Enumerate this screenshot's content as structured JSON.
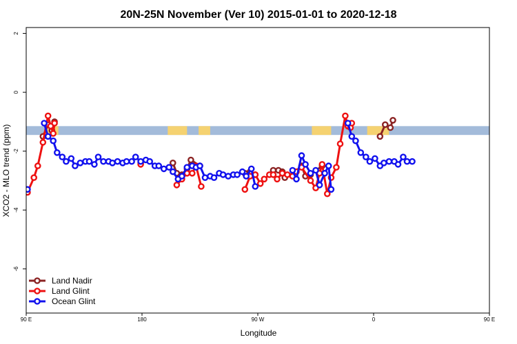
{
  "chart_data": {
    "type": "line",
    "title": "20N-25N November (Ver 10)   2015-01-01 to 2020-12-18",
    "xlabel": "Longitude",
    "ylabel": "XCO2 - MLO trend (ppm)",
    "xlim": [
      90,
      450
    ],
    "ylim": [
      -7.5,
      2.2
    ],
    "xticks": [
      {
        "value": 90,
        "label": "90 E"
      },
      {
        "value": 180,
        "label": "180"
      },
      {
        "value": 270,
        "label": "90 W"
      },
      {
        "value": 360,
        "label": "0"
      },
      {
        "value": 450,
        "label": "90 E"
      },
      {
        "value": 540,
        "label": "180"
      }
    ],
    "yticks": [
      {
        "value": 2,
        "label": "2"
      },
      {
        "value": 0,
        "label": "0"
      },
      {
        "value": -2,
        "label": "-2"
      },
      {
        "value": -4,
        "label": "-4"
      },
      {
        "value": -6,
        "label": "-6"
      }
    ],
    "land_band": {
      "ymin": -1.45,
      "ymax": -1.15,
      "land_color": "#f5d271",
      "ocean_color": "#a3bbda"
    },
    "legend_position": "bottom-left",
    "series": [
      {
        "name": "Land Nadir",
        "color": "#8b2323",
        "points": [
          [
            103,
            -1.5
          ],
          [
            107,
            -1.1
          ],
          [
            110,
            -1.3
          ],
          [
            112,
            -1.0
          ],
          [
            179,
            -2.4
          ],
          [
            204,
            -2.4
          ],
          [
            207,
            -2.75
          ],
          [
            211,
            -2.8
          ],
          [
            215,
            -2.6
          ],
          [
            218,
            -2.3
          ],
          [
            225,
            -2.5
          ],
          [
            260,
            -2.75
          ],
          [
            264,
            -2.7
          ],
          [
            268,
            -2.8
          ],
          [
            282,
            -2.65
          ],
          [
            286,
            -2.65
          ],
          [
            289,
            -2.7
          ],
          [
            291,
            -2.9
          ],
          [
            299,
            -2.7
          ],
          [
            304,
            -2.5
          ],
          [
            307,
            -2.85
          ],
          [
            311,
            -2.8
          ],
          [
            320,
            -2.5
          ],
          [
            365,
            -1.5
          ],
          [
            369,
            -1.1
          ],
          [
            373,
            -1.2
          ],
          [
            375,
            -0.95
          ]
        ]
      },
      {
        "name": "Land Glint",
        "color": "#ee1111",
        "points": [
          [
            91,
            -3.4
          ],
          [
            96,
            -2.9
          ],
          [
            99,
            -2.5
          ],
          [
            103,
            -1.7
          ],
          [
            107,
            -0.8
          ],
          [
            109,
            -1.15
          ],
          [
            111,
            -1.4
          ],
          [
            112,
            -1.05
          ],
          [
            179,
            -2.45
          ],
          [
            207,
            -3.15
          ],
          [
            211,
            -2.95
          ],
          [
            215,
            -2.75
          ],
          [
            219,
            -2.75
          ],
          [
            222,
            -2.5
          ],
          [
            226,
            -3.2
          ],
          [
            260,
            -3.3
          ],
          [
            264,
            -2.85
          ],
          [
            268,
            -2.8
          ],
          [
            272,
            -3.1
          ],
          [
            275,
            -2.95
          ],
          [
            279,
            -2.8
          ],
          [
            282,
            -2.8
          ],
          [
            285,
            -2.95
          ],
          [
            289,
            -2.75
          ],
          [
            293,
            -2.8
          ],
          [
            297,
            -2.85
          ],
          [
            300,
            -2.7
          ],
          [
            304,
            -2.55
          ],
          [
            311,
            -3.0
          ],
          [
            315,
            -3.25
          ],
          [
            318,
            -2.75
          ],
          [
            320,
            -2.45
          ],
          [
            324,
            -3.45
          ],
          [
            327,
            -2.9
          ],
          [
            331,
            -2.55
          ],
          [
            334,
            -1.75
          ],
          [
            338,
            -0.8
          ],
          [
            340,
            -1.15
          ],
          [
            342,
            -1.2
          ],
          [
            343,
            -1.05
          ]
        ]
      },
      {
        "name": "Ocean Glint",
        "color": "#1111ee",
        "points": [
          [
            91,
            -3.3
          ],
          [
            104,
            -1.05
          ],
          [
            107,
            -1.5
          ],
          [
            111,
            -1.65
          ],
          [
            114,
            -2.05
          ],
          [
            118,
            -2.2
          ],
          [
            121,
            -2.35
          ],
          [
            125,
            -2.25
          ],
          [
            128,
            -2.5
          ],
          [
            132,
            -2.4
          ],
          [
            136,
            -2.35
          ],
          [
            139,
            -2.35
          ],
          [
            143,
            -2.45
          ],
          [
            146,
            -2.2
          ],
          [
            150,
            -2.35
          ],
          [
            154,
            -2.35
          ],
          [
            157,
            -2.4
          ],
          [
            161,
            -2.35
          ],
          [
            165,
            -2.4
          ],
          [
            168,
            -2.35
          ],
          [
            172,
            -2.35
          ],
          [
            175,
            -2.2
          ],
          [
            179,
            -2.35
          ],
          [
            183,
            -2.3
          ],
          [
            186,
            -2.35
          ],
          [
            190,
            -2.5
          ],
          [
            193,
            -2.5
          ],
          [
            197,
            -2.6
          ],
          [
            201,
            -2.55
          ],
          [
            204,
            -2.7
          ],
          [
            208,
            -2.95
          ],
          [
            211,
            -2.85
          ],
          [
            215,
            -2.55
          ],
          [
            219,
            -2.5
          ],
          [
            222,
            -2.55
          ],
          [
            225,
            -2.5
          ],
          [
            229,
            -2.9
          ],
          [
            233,
            -2.85
          ],
          [
            236,
            -2.9
          ],
          [
            240,
            -2.75
          ],
          [
            243,
            -2.8
          ],
          [
            247,
            -2.85
          ],
          [
            251,
            -2.8
          ],
          [
            254,
            -2.8
          ],
          [
            258,
            -2.7
          ],
          [
            261,
            -2.85
          ],
          [
            265,
            -2.6
          ],
          [
            268,
            -3.2
          ],
          [
            297,
            -2.65
          ],
          [
            300,
            -2.95
          ],
          [
            304,
            -2.15
          ],
          [
            307,
            -2.45
          ],
          [
            311,
            -2.75
          ],
          [
            315,
            -2.65
          ],
          [
            318,
            -3.15
          ],
          [
            322,
            -2.75
          ],
          [
            325,
            -2.5
          ],
          [
            327,
            -3.3
          ],
          [
            340,
            -1.05
          ],
          [
            343,
            -1.5
          ],
          [
            346,
            -1.65
          ],
          [
            350,
            -2.05
          ],
          [
            354,
            -2.2
          ],
          [
            357,
            -2.35
          ],
          [
            361,
            -2.25
          ],
          [
            365,
            -2.5
          ],
          [
            368,
            -2.4
          ],
          [
            372,
            -2.35
          ],
          [
            376,
            -2.35
          ],
          [
            379,
            -2.45
          ],
          [
            383,
            -2.2
          ],
          [
            386,
            -2.35
          ],
          [
            390,
            -2.35
          ]
        ]
      }
    ]
  }
}
